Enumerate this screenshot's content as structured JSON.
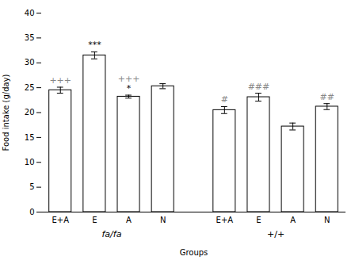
{
  "chart_data": {
    "type": "bar",
    "xlabel": "Groups",
    "ylabel": "Food intake (g/day)",
    "categories": [
      "E+A",
      "E",
      "A",
      "N",
      "E+A",
      "E",
      "A",
      "N"
    ],
    "values": [
      24.5,
      31.5,
      23.2,
      25.3,
      20.5,
      23.1,
      17.2,
      21.2
    ],
    "errors": [
      0.6,
      0.7,
      0.3,
      0.5,
      0.7,
      0.8,
      0.7,
      0.6
    ],
    "color": "#ffffff",
    "ylim": [
      0,
      40
    ],
    "yticks": [
      0,
      5,
      10,
      15,
      20,
      25,
      30,
      35,
      40
    ],
    "grid": false,
    "group_labels": [
      "fa/fa",
      "+/+"
    ],
    "annotations": [
      {
        "text": "+++",
        "bar": 0,
        "color": "#888888"
      },
      {
        "text": "***",
        "bar": 1,
        "color": "#000000"
      },
      {
        "text": "*",
        "bar": 2,
        "color": "#000000"
      },
      {
        "text": "+++",
        "bar": 2,
        "color": "#888888"
      },
      {
        "text": "#",
        "bar": 4,
        "color": "#888888"
      },
      {
        "text": "###",
        "bar": 5,
        "color": "#888888"
      },
      {
        "text": "##",
        "bar": 7,
        "color": "#888888"
      }
    ]
  }
}
